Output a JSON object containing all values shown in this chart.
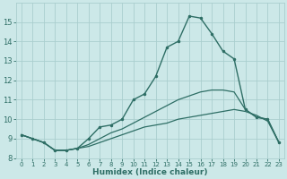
{
  "xlabel": "Humidex (Indice chaleur)",
  "x": [
    0,
    1,
    2,
    3,
    4,
    5,
    6,
    7,
    8,
    9,
    10,
    11,
    12,
    13,
    14,
    15,
    16,
    17,
    18,
    19,
    20,
    21,
    22,
    23
  ],
  "line1": [
    9.2,
    9.0,
    8.8,
    8.4,
    8.4,
    8.5,
    8.6,
    8.8,
    9.0,
    9.2,
    9.4,
    9.6,
    9.7,
    9.8,
    10.0,
    10.1,
    10.2,
    10.3,
    10.4,
    10.5,
    10.4,
    10.2,
    9.9,
    8.8
  ],
  "line2": [
    9.2,
    9.0,
    8.8,
    8.4,
    8.4,
    8.5,
    8.7,
    9.0,
    9.3,
    9.5,
    9.8,
    10.1,
    10.4,
    10.7,
    11.0,
    11.2,
    11.4,
    11.5,
    11.5,
    11.4,
    10.5,
    10.1,
    10.0,
    8.8
  ],
  "line3": [
    9.2,
    9.0,
    8.8,
    8.4,
    8.4,
    8.5,
    9.0,
    9.6,
    9.7,
    10.0,
    11.0,
    11.3,
    12.2,
    13.7,
    14.0,
    15.3,
    15.2,
    14.4,
    13.5,
    13.1,
    10.5,
    10.1,
    10.0,
    8.8
  ],
  "color": "#2e6e65",
  "bg_color": "#cce8e8",
  "grid_color": "#aacece",
  "ylim": [
    8,
    16
  ],
  "xlim": [
    -0.5,
    23.5
  ],
  "yticks": [
    8,
    9,
    10,
    11,
    12,
    13,
    14,
    15
  ],
  "xticks": [
    0,
    1,
    2,
    3,
    4,
    5,
    6,
    7,
    8,
    9,
    10,
    11,
    12,
    13,
    14,
    15,
    16,
    17,
    18,
    19,
    20,
    21,
    22,
    23
  ]
}
